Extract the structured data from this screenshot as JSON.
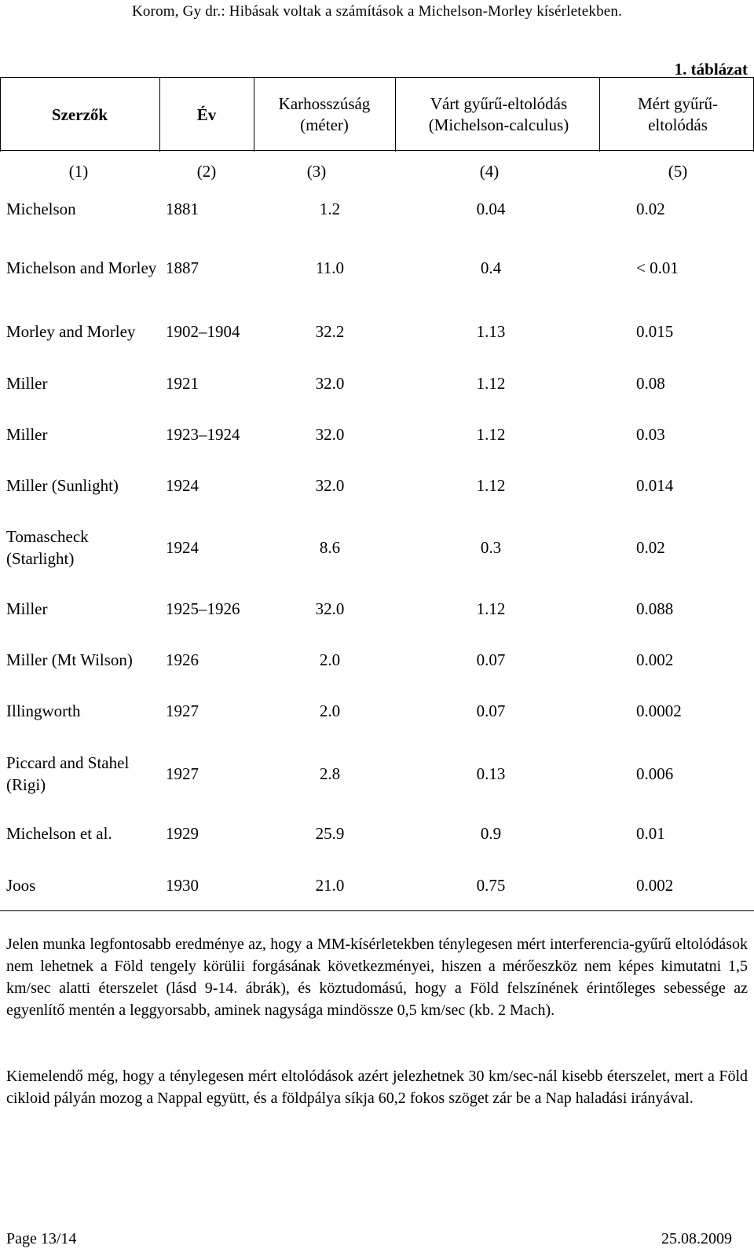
{
  "header": "Korom, Gy dr.: Hibásak voltak a számítások a Michelson-Morley kísérletekben.",
  "table": {
    "label": "1. táblázat",
    "columns": [
      {
        "title": "Szerzők",
        "number": ""
      },
      {
        "title": "Év",
        "number": ""
      },
      {
        "title": "Karhosszúság (méter)",
        "number": ""
      },
      {
        "title": "Várt gyűrű-eltolódás (Michelson-calculus)",
        "number": ""
      },
      {
        "title": "Mért gyűrű-eltolódás",
        "number": ""
      }
    ],
    "column_numbers": [
      "(1)",
      "(2)",
      "(3)",
      "(4)",
      "(5)"
    ],
    "rows": [
      {
        "author": "Michelson",
        "year": "1881",
        "arm": "1.2",
        "expected": "0.04",
        "measured": "0.02"
      },
      {
        "author": "Michelson and Morley",
        "year": "1887",
        "arm": "11.0",
        "expected": "0.4",
        "measured": "< 0.01"
      },
      {
        "author": "Morley and Morley",
        "year": "1902–1904",
        "arm": "32.2",
        "expected": "1.13",
        "measured": "0.015"
      },
      {
        "author": "Miller",
        "year": "1921",
        "arm": "32.0",
        "expected": "1.12",
        "measured": "0.08"
      },
      {
        "author": "Miller",
        "year": "1923–1924",
        "arm": "32.0",
        "expected": "1.12",
        "measured": "0.03"
      },
      {
        "author": "Miller (Sunlight)",
        "year": "1924",
        "arm": "32.0",
        "expected": "1.12",
        "measured": "0.014"
      },
      {
        "author": "Tomascheck (Starlight)",
        "year": "1924",
        "arm": "8.6",
        "expected": "0.3",
        "measured": "0.02"
      },
      {
        "author": "Miller",
        "year": "1925–1926",
        "arm": "32.0",
        "expected": "1.12",
        "measured": "0.088"
      },
      {
        "author": "Miller (Mt Wilson)",
        "year": "1926",
        "arm": "2.0",
        "expected": "0.07",
        "measured": "0.002"
      },
      {
        "author": "Illingworth",
        "year": "1927",
        "arm": "2.0",
        "expected": "0.07",
        "measured": "0.0002"
      },
      {
        "author": "Piccard and Stahel (Rigi)",
        "year": "1927",
        "arm": "2.8",
        "expected": "0.13",
        "measured": "0.006"
      },
      {
        "author": "Michelson et al.",
        "year": "1929",
        "arm": "25.9",
        "expected": "0.9",
        "measured": "0.01"
      },
      {
        "author": "Joos",
        "year": "1930",
        "arm": "21.0",
        "expected": "0.75",
        "measured": "0.002"
      }
    ]
  },
  "paragraphs": [
    "Jelen munka legfontosabb eredménye az, hogy a MM-kísérletekben ténylegesen mért interferencia-gyűrű eltolódások nem lehetnek a Föld tengely körülii forgásának következményei, hiszen a mérőeszköz nem képes kimutatni 1,5 km/sec alatti éterszelet (lásd 9-14. ábrák), és köztudomású, hogy a Föld felszínének érintőleges sebessége az egyenlítő mentén a leggyorsabb, aminek nagysága mindössze 0,5 km/sec (kb. 2 Mach).",
    "Kiemelendő még, hogy a ténylegesen mért eltolódások azért jelezhetnek 30 km/sec-nál kisebb éterszelet, mert a Föld cikloid pályán mozog a Nappal együtt, és a földpálya síkja 60,2 fokos szöget zár be a Nap haladási irányával."
  ],
  "footer": {
    "page": "Page 13/14",
    "date": "25.08.2009"
  }
}
